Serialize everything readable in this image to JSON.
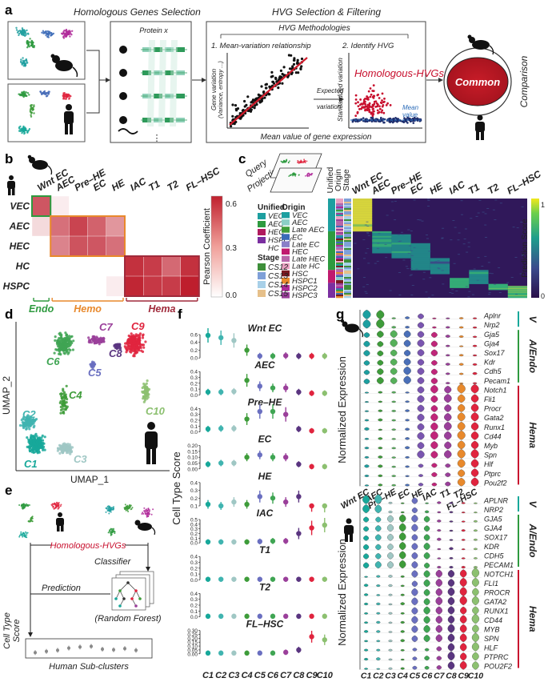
{
  "panels": {
    "a": {
      "letter": "a",
      "title_left": "Homologous Genes Selection",
      "title_right": "HVG Selection & Filtering",
      "protein_label": "Protein x",
      "hvg_box_title": "HVG Methodologies",
      "step1": "1. Mean-variation relationship",
      "step2": "2. Identify HVG",
      "y1_label": "Gene variation",
      "y1_sub": "(Variance, entropy ...)",
      "x_label": "Mean value of gene expression",
      "arrow_label_1": "Expected",
      "arrow_label_2": "variation",
      "y2_label": "Standardized variation",
      "hvg_title": "Homologous-HVGs",
      "mean_label_1": "Mean",
      "mean_label_2": "value",
      "common": "Common",
      "comparison": "Comparison",
      "dots": "⋮"
    },
    "b": {
      "letter": "b",
      "cols": [
        "Wnt EC",
        "AEC",
        "Pre–HE",
        "EC",
        "HE",
        "IAC",
        "T1",
        "T2",
        "FL–HSC"
      ],
      "rows": [
        "VEC",
        "AEC",
        "HEC",
        "HC",
        "HSPC"
      ],
      "matrix": [
        [
          0.45,
          0.05,
          0.0,
          0.0,
          0.0,
          0.0,
          0.0,
          0.0,
          0.0
        ],
        [
          0.1,
          0.38,
          0.5,
          0.42,
          0.28,
          0.0,
          0.0,
          0.0,
          0.0
        ],
        [
          0.0,
          0.33,
          0.46,
          0.45,
          0.38,
          0.0,
          0.0,
          0.0,
          0.0
        ],
        [
          0.0,
          0.0,
          0.0,
          0.0,
          0.0,
          0.55,
          0.52,
          0.4,
          0.55
        ],
        [
          0.0,
          0.0,
          0.0,
          0.0,
          0.05,
          0.58,
          0.53,
          0.52,
          0.6
        ]
      ],
      "groups": [
        "Endo",
        "Hemo",
        "Hema"
      ],
      "group_colors": [
        "#2e9a3f",
        "#e8892c",
        "#a02a3b"
      ],
      "colorbar_label": "Pearson Coefficient",
      "colorbar_ticks": [
        "0.6",
        "0.3",
        "0.0"
      ]
    },
    "c": {
      "letter": "c",
      "query_1": "Query",
      "query_2": "Projection",
      "unified_title": "Unified",
      "unified_items": [
        "VEC",
        "AEC",
        "HEC",
        "HSPC/",
        "HC"
      ],
      "origin_title": "Origin",
      "origin_items": [
        "VEC",
        "AEC",
        "Late AEC",
        "EC",
        "Late EC",
        "HEC",
        "Late HEC",
        "Late HC",
        "HSC",
        "HSPC1",
        "HSPC2",
        "HSPC3"
      ],
      "stage_title": "Stage",
      "stage_items": [
        "CS12",
        "CS13",
        "CS14",
        "CS15"
      ],
      "strip_labels": [
        "Unified",
        "Origin",
        "Stage"
      ],
      "cols": [
        "Wnt EC",
        "AEC",
        "Pre–HE",
        "EC",
        "HE",
        "IAC",
        "T1",
        "T2",
        "FL–HSC"
      ],
      "colorbar_label": "Prediction Score",
      "colorbar_ticks": [
        "1",
        "0"
      ]
    },
    "d": {
      "letter": "d",
      "clusters": [
        "C1",
        "C2",
        "C3",
        "C4",
        "C5",
        "C6",
        "C7",
        "C8",
        "C9",
        "C10"
      ],
      "cluster_colors": [
        "#18a89a",
        "#40b4b0",
        "#9fc7c4",
        "#3e9c3a",
        "#6a6fc0",
        "#3fa553",
        "#9a3f9a",
        "#5a3580",
        "#e0243e",
        "#8cc070"
      ],
      "xlabel": "UMAP_1",
      "ylabel": "UMAP_2"
    },
    "e": {
      "letter": "e",
      "hvg": "Homologous-HVGs",
      "classifier": "Classifier",
      "prediction": "Prediction",
      "rf": "(Random Forest)",
      "score_1": "Cell Type",
      "score_2": "Score",
      "xlabel": "Human Sub-clusters"
    },
    "f": {
      "letter": "f",
      "ylabel": "Cell Type Score",
      "xcats": [
        "C1",
        "C2",
        "C3",
        "C4",
        "C5",
        "C6",
        "C7",
        "C8",
        "C9",
        "C10"
      ],
      "subplots": [
        {
          "title": "Wnt EC",
          "ticks": [
            "0.6",
            "0.4",
            "0.2",
            "0.0"
          ],
          "ymax": 0.7,
          "values": [
            0.58,
            0.52,
            0.45,
            0.2,
            0.05,
            0.05,
            0.06,
            0.05,
            0.05,
            0.05
          ]
        },
        {
          "title": "AEC",
          "ticks": [
            "0.4",
            "0.3",
            "0.2",
            "0.1",
            "0.0"
          ],
          "ymax": 0.45,
          "values": [
            0.05,
            0.05,
            0.06,
            0.25,
            0.15,
            0.12,
            0.12,
            0.05,
            0.03,
            0.03
          ]
        },
        {
          "title": "Pre–HE",
          "ticks": [
            "0.4",
            "0.3",
            "0.2",
            "0.1",
            "0.0"
          ],
          "ymax": 0.45,
          "values": [
            0.05,
            0.06,
            0.06,
            0.22,
            0.35,
            0.35,
            0.3,
            0.05,
            0.02,
            0.02
          ]
        },
        {
          "title": "EC",
          "ticks": [
            "0.20",
            "0.15",
            "0.10",
            "0.05",
            "0.00"
          ],
          "ymax": 0.22,
          "values": [
            0.04,
            0.05,
            0.05,
            0.1,
            0.12,
            0.1,
            0.1,
            0.04,
            0.02,
            0.02
          ]
        },
        {
          "title": "HE",
          "ticks": [
            "0.4",
            "0.3",
            "0.2",
            "0.1"
          ],
          "ymax": 0.45,
          "values": [
            0.12,
            0.1,
            0.15,
            0.12,
            0.22,
            0.2,
            0.15,
            0.22,
            0.07,
            0.06
          ]
        },
        {
          "title": "IAC",
          "ticks": [
            "0.5",
            "0.4",
            "0.3",
            "0.2",
            "0.1",
            "0.0"
          ],
          "ymax": 0.55,
          "values": [
            0.02,
            0.02,
            0.02,
            0.02,
            0.03,
            0.04,
            0.04,
            0.2,
            0.32,
            0.38
          ]
        },
        {
          "title": "T1",
          "ticks": [
            "0.4",
            "0.3",
            "0.2",
            "0.1",
            "0.0"
          ],
          "ymax": 0.45,
          "values": [
            0.01,
            0.01,
            0.01,
            0.01,
            0.01,
            0.01,
            0.01,
            0.01,
            0.01,
            0.01
          ]
        },
        {
          "title": "T2",
          "ticks": [
            "0.4",
            "0.3",
            "0.2",
            "0.1",
            "0.0"
          ],
          "ymax": 0.45,
          "values": [
            0.01,
            0.01,
            0.01,
            0.01,
            0.01,
            0.01,
            0.01,
            0.01,
            0.01,
            0.01
          ]
        },
        {
          "title": "FL–HSC",
          "ticks": [
            "0.30",
            "0.25",
            "0.20",
            "0.15",
            "0.10",
            "0.05",
            "0.00"
          ],
          "ymax": 0.32,
          "values": [
            0.01,
            0.01,
            0.01,
            0.01,
            0.01,
            0.01,
            0.02,
            0.05,
            0.22,
            0.18
          ]
        }
      ]
    },
    "g": {
      "letter": "g",
      "ylabel": "Normalized Expression",
      "mouse_genes": [
        "Aplnr",
        "Nrp2",
        "Gja5",
        "Gja4",
        "Sox17",
        "Kdr",
        "Cdh5",
        "Pecam1",
        "Notch1",
        "Fli1",
        "Procr",
        "Gata2",
        "Runx1",
        "Cd44",
        "Myb",
        "Spn",
        "Hlf",
        "Ptprc",
        "Pou2f2"
      ],
      "mouse_cats": [
        "Wnt EC",
        "AEC",
        "Pre–HE",
        "EC",
        "HE",
        "IAC",
        "T1",
        "T2",
        "FL–HSC"
      ],
      "mouse_colors": [
        "#1d9fa0",
        "#3e9c3a",
        "#56b05a",
        "#4a6fb8",
        "#7a55b0",
        "#c0267a",
        "#9a3f9a",
        "#e8892c",
        "#e0243e"
      ],
      "human_genes": [
        "APLNR",
        "NRP2",
        "GJA5",
        "GJA4",
        "SOX17",
        "KDR",
        "CDH5",
        "PECAM1",
        "NOTCH1",
        "FLI1",
        "PROCR",
        "GATA2",
        "RUNX1",
        "CD44",
        "MYB",
        "SPN",
        "HLF",
        "PTPRC",
        "POU2F2"
      ],
      "human_cats": [
        "C1",
        "C2",
        "C3",
        "C4",
        "C5",
        "C6",
        "C7",
        "C8",
        "C9",
        "C10"
      ],
      "human_colors": [
        "#18a89a",
        "#40b4b0",
        "#9fc7c4",
        "#3e9c3a",
        "#6a6fc0",
        "#3fa553",
        "#9a3f9a",
        "#5a3580",
        "#e0243e",
        "#8cc070"
      ],
      "groups": [
        "V",
        "A/Endo",
        "Hema"
      ]
    }
  }
}
